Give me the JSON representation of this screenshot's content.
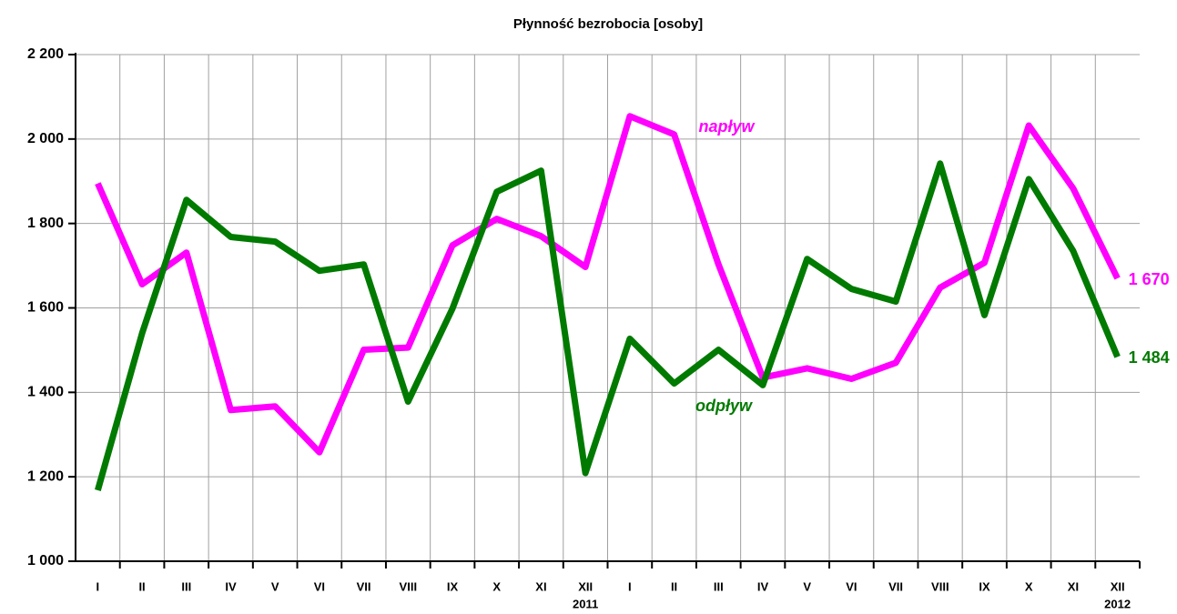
{
  "chart_data": {
    "type": "line",
    "title": "Płynność bezrobocia [osoby]",
    "groups": [
      {
        "label": "2011",
        "categories": [
          "I",
          "II",
          "III",
          "IV",
          "V",
          "VI",
          "VII",
          "VIII",
          "IX",
          "X",
          "XI",
          "XII"
        ]
      },
      {
        "label": "2012",
        "categories": [
          "I",
          "II",
          "III",
          "IV",
          "V",
          "VI",
          "VII",
          "VIII",
          "IX",
          "X",
          "XI",
          "XII"
        ]
      }
    ],
    "series": [
      {
        "name": "napływ",
        "color": "#ff00ff",
        "values": [
          1895,
          1656,
          1731,
          1358,
          1367,
          1258,
          1501,
          1506,
          1748,
          1811,
          1770,
          1697,
          2054,
          2011,
          1703,
          1435,
          1457,
          1432,
          1470,
          1648,
          1707,
          2032,
          1883,
          1670
        ],
        "value_labels": [
          null,
          null,
          null,
          null,
          null,
          null,
          null,
          null,
          null,
          null,
          null,
          null,
          null,
          null,
          null,
          null,
          null,
          null,
          null,
          null,
          null,
          null,
          null,
          "1 670"
        ]
      },
      {
        "name": "odpływ",
        "color": "#007a00",
        "values": [
          1168,
          1540,
          1856,
          1768,
          1757,
          1688,
          1703,
          1378,
          1598,
          1875,
          1925,
          1209,
          1527,
          1421,
          1501,
          1417,
          1716,
          1645,
          1615,
          1942,
          1583,
          1905,
          1735,
          1484
        ],
        "value_labels": [
          null,
          null,
          null,
          null,
          null,
          null,
          null,
          null,
          null,
          null,
          null,
          null,
          null,
          null,
          null,
          null,
          null,
          null,
          null,
          null,
          null,
          null,
          null,
          "1 484"
        ]
      }
    ],
    "ylim": [
      1000,
      2200
    ],
    "yticks": [
      {
        "value": 1000,
        "label": "1 000"
      },
      {
        "value": 1200,
        "label": "1 200"
      },
      {
        "value": 1400,
        "label": "1 400"
      },
      {
        "value": 1600,
        "label": "1 600"
      },
      {
        "value": 1800,
        "label": "1 800"
      },
      {
        "value": 2000,
        "label": "2 000"
      },
      {
        "value": 2200,
        "label": "2 200"
      }
    ],
    "grid": true
  }
}
